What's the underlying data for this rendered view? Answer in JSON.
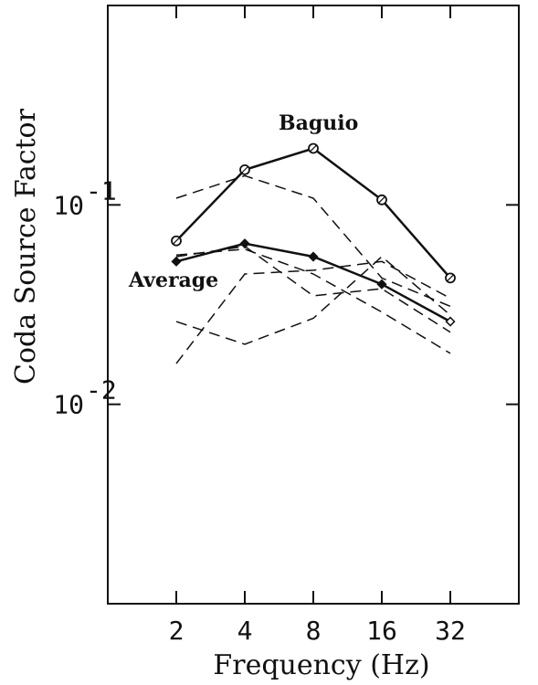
{
  "chart_data": {
    "type": "line",
    "title": "",
    "xlabel": "Frequency (Hz)",
    "ylabel": "Coda Source Factor",
    "x_scale": "log2",
    "y_scale": "log10",
    "x": [
      2,
      4,
      8,
      16,
      32
    ],
    "x_ticks": [
      "2",
      "4",
      "8",
      "16",
      "32"
    ],
    "xlim": [
      1,
      64
    ],
    "ylim": [
      0.001,
      1
    ],
    "y_ticks": [
      {
        "value": 0.1,
        "base": "10",
        "exp": "-1"
      },
      {
        "value": 0.01,
        "base": "10",
        "exp": "-2"
      }
    ],
    "grid": false,
    "series": [
      {
        "name": "Baguio",
        "style": "solid",
        "marker": "circle",
        "values": [
          0.066,
          0.15,
          0.192,
          0.106,
          0.043
        ]
      },
      {
        "name": "Average",
        "style": "solid",
        "marker": "diamond",
        "values": [
          0.052,
          0.064,
          0.055,
          0.04,
          0.026
        ]
      },
      {
        "style": "dashed",
        "values": [
          0.108,
          0.14,
          0.108,
          0.043,
          0.031
        ]
      },
      {
        "style": "dashed",
        "values": [
          0.055,
          0.062,
          0.035,
          0.038,
          0.023
        ]
      },
      {
        "style": "dashed",
        "values": [
          0.016,
          0.045,
          0.047,
          0.052,
          0.034
        ]
      },
      {
        "style": "dashed",
        "values": [
          0.026,
          0.02,
          0.027,
          0.055,
          0.028
        ]
      },
      {
        "style": "dashed",
        "values": [
          0.056,
          0.06,
          0.045,
          0.029,
          0.018
        ]
      }
    ],
    "annotations": [
      {
        "text": "Baguio",
        "series": "Baguio"
      },
      {
        "text": "Average",
        "series": "Average"
      }
    ]
  },
  "colors": {
    "ink": "#111111",
    "background": "#ffffff"
  }
}
